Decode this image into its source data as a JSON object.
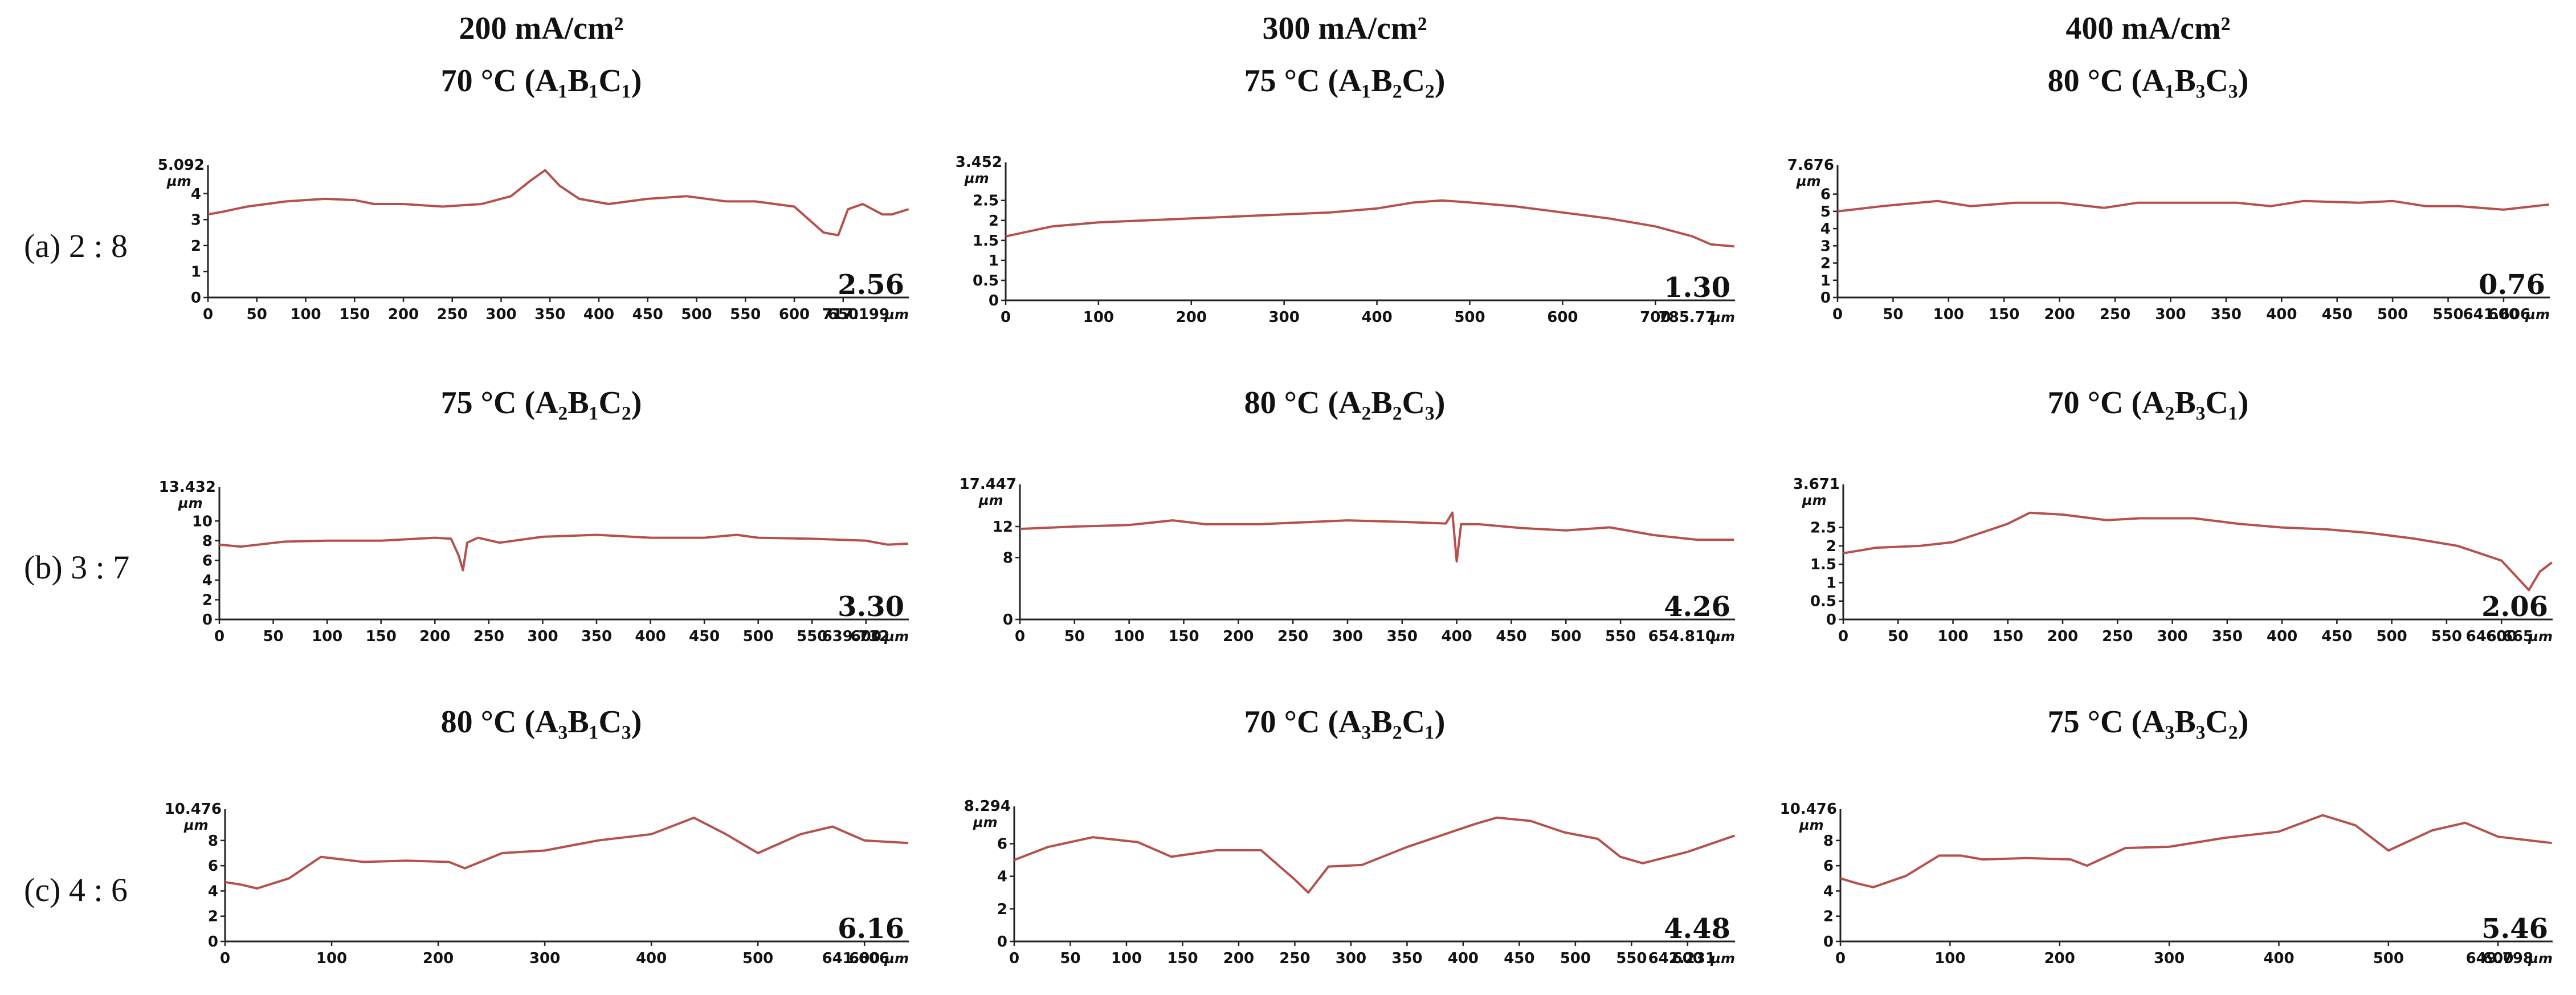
{
  "column_headers": [
    {
      "current": "200 mA/cm²",
      "condition": "70 °C (A₁B₁C₁)"
    },
    {
      "current": "300 mA/cm²",
      "condition": "75 °C (A₁B₂C₂)"
    },
    {
      "current": "400 mA/cm²",
      "condition": "80 °C (A₁B₃C₃)"
    }
  ],
  "row_conditions": [
    [
      "75 °C (A₂B₁C₂)",
      "80 °C (A₂B₂C₃)",
      "70 °C (A₂B₃C₁)"
    ],
    [
      "80 °C (A₃B₁C₃)",
      "70 °C (A₃B₂C₁)",
      "75 °C (A₃B₃C₂)"
    ]
  ],
  "row_labels": [
    "(a) 2 : 8",
    "(b) 3 : 7",
    "(c) 4 : 6"
  ],
  "colors": {
    "profile": "#b5504c",
    "axis": "#222222"
  },
  "chart_data": [
    {
      "type": "line",
      "panel": "a1",
      "ymax_label": "5.092",
      "yunit": "µm",
      "ylim": [
        0,
        5.092
      ],
      "yticks": [
        0,
        1,
        2,
        3,
        4
      ],
      "xticks": [
        0,
        50,
        100,
        150,
        200,
        250,
        300,
        350,
        400,
        450,
        500,
        550,
        600,
        650
      ],
      "xmax": 717.199,
      "xmax_label": "717.199",
      "xunit": "µm",
      "value_label": "2.56",
      "x": [
        0,
        15,
        40,
        80,
        120,
        150,
        170,
        200,
        240,
        280,
        310,
        330,
        345,
        360,
        380,
        410,
        450,
        490,
        530,
        560,
        600,
        630,
        645,
        655,
        670,
        690,
        700,
        717
      ],
      "y": [
        3.2,
        3.3,
        3.5,
        3.7,
        3.8,
        3.75,
        3.6,
        3.6,
        3.5,
        3.6,
        3.9,
        4.5,
        4.9,
        4.3,
        3.8,
        3.6,
        3.8,
        3.9,
        3.7,
        3.7,
        3.5,
        2.5,
        2.4,
        3.4,
        3.6,
        3.2,
        3.2,
        3.4
      ]
    },
    {
      "type": "line",
      "panel": "a2",
      "ymax_label": "3.452",
      "yunit": "µm",
      "ylim": [
        0,
        3.452
      ],
      "yticks": [
        0,
        0.5,
        1,
        1.5,
        2,
        2.5
      ],
      "xticks": [
        0,
        100,
        200,
        300,
        400,
        500,
        600,
        700
      ],
      "xmax": 785.77,
      "xmax_label": "785.77",
      "xunit": "µm",
      "value_label": "1.30",
      "x": [
        0,
        50,
        100,
        150,
        200,
        250,
        300,
        350,
        400,
        440,
        470,
        500,
        550,
        600,
        650,
        700,
        740,
        760,
        785
      ],
      "y": [
        1.6,
        1.85,
        1.95,
        2.0,
        2.05,
        2.1,
        2.15,
        2.2,
        2.3,
        2.45,
        2.5,
        2.45,
        2.35,
        2.2,
        2.05,
        1.85,
        1.6,
        1.4,
        1.35
      ]
    },
    {
      "type": "line",
      "panel": "a3",
      "ymax_label": "7.676",
      "yunit": "µm",
      "ylim": [
        0,
        7.676
      ],
      "yticks": [
        0,
        1,
        2,
        3,
        4,
        5,
        6
      ],
      "xticks": [
        0,
        50,
        100,
        150,
        200,
        250,
        300,
        350,
        400,
        450,
        500,
        550,
        600
      ],
      "xmax": 641.606,
      "xmax_label": "641.606",
      "xunit": "µm",
      "value_label": "0.76",
      "x": [
        0,
        40,
        90,
        120,
        160,
        200,
        240,
        270,
        320,
        360,
        390,
        420,
        470,
        500,
        530,
        560,
        600,
        641
      ],
      "y": [
        5.0,
        5.3,
        5.6,
        5.3,
        5.5,
        5.5,
        5.2,
        5.5,
        5.5,
        5.5,
        5.3,
        5.6,
        5.5,
        5.6,
        5.3,
        5.3,
        5.1,
        5.4
      ]
    },
    {
      "type": "line",
      "panel": "b1",
      "ymax_label": "13.432",
      "yunit": "µm",
      "ylim": [
        0,
        13.432
      ],
      "yticks": [
        0,
        2,
        4,
        6,
        8,
        10
      ],
      "xticks": [
        0,
        50,
        100,
        150,
        200,
        250,
        300,
        350,
        400,
        450,
        500,
        550,
        600
      ],
      "xmax": 639.732,
      "xmax_label": "639.732",
      "xunit": "µm",
      "value_label": "3.30",
      "x": [
        0,
        20,
        60,
        100,
        150,
        200,
        215,
        222,
        226,
        230,
        240,
        260,
        300,
        350,
        400,
        450,
        480,
        500,
        550,
        600,
        620,
        639
      ],
      "y": [
        7.6,
        7.4,
        7.9,
        8.0,
        8.0,
        8.3,
        8.2,
        6.5,
        5.0,
        7.8,
        8.3,
        7.8,
        8.4,
        8.6,
        8.3,
        8.3,
        8.6,
        8.3,
        8.2,
        8.0,
        7.6,
        7.7
      ]
    },
    {
      "type": "line",
      "panel": "b2",
      "ymax_label": "17.447",
      "yunit": "µm",
      "ylim": [
        0,
        17.447
      ],
      "yticks": [
        0,
        8,
        12
      ],
      "xticks": [
        0,
        50,
        100,
        150,
        200,
        250,
        300,
        350,
        400,
        450,
        500,
        550
      ],
      "xmax": 654.81,
      "xmax_label": "654.810",
      "xunit": "µm",
      "value_label": "4.26",
      "x": [
        0,
        50,
        100,
        140,
        170,
        220,
        300,
        350,
        390,
        396,
        400,
        404,
        420,
        460,
        500,
        540,
        580,
        620,
        654
      ],
      "y": [
        11.7,
        12.0,
        12.2,
        12.8,
        12.3,
        12.3,
        12.8,
        12.6,
        12.4,
        13.8,
        7.5,
        12.3,
        12.3,
        11.8,
        11.5,
        11.9,
        10.9,
        10.3,
        10.3
      ]
    },
    {
      "type": "line",
      "panel": "b3",
      "ymax_label": "3.671",
      "yunit": "µm",
      "ylim": [
        0,
        3.671
      ],
      "yticks": [
        0,
        0.5,
        1,
        1.5,
        2,
        2.5
      ],
      "xticks": [
        0,
        50,
        100,
        150,
        200,
        250,
        300,
        350,
        400,
        450,
        500,
        550,
        600
      ],
      "xmax": 646.665,
      "xmax_label": "646.665",
      "xunit": "µm",
      "value_label": "2.06",
      "x": [
        0,
        30,
        70,
        100,
        130,
        150,
        170,
        200,
        240,
        270,
        320,
        360,
        400,
        440,
        480,
        520,
        560,
        600,
        625,
        635,
        646
      ],
      "y": [
        1.8,
        1.95,
        2.0,
        2.1,
        2.4,
        2.6,
        2.9,
        2.85,
        2.7,
        2.75,
        2.75,
        2.6,
        2.5,
        2.45,
        2.35,
        2.2,
        2.0,
        1.6,
        0.8,
        1.3,
        1.55
      ]
    },
    {
      "type": "line",
      "panel": "c1",
      "ymax_label": "10.476",
      "yunit": "µm",
      "ylim": [
        0,
        10.476
      ],
      "yticks": [
        0,
        2,
        4,
        6,
        8
      ],
      "xticks": [
        0,
        100,
        200,
        300,
        400,
        500,
        600
      ],
      "xmax": 641.606,
      "xmax_label": "641.606",
      "xunit": "µm",
      "value_label": "6.16",
      "x": [
        0,
        15,
        30,
        60,
        90,
        110,
        130,
        170,
        210,
        225,
        260,
        300,
        350,
        400,
        440,
        470,
        500,
        540,
        570,
        600,
        641
      ],
      "y": [
        4.7,
        4.5,
        4.2,
        5.0,
        6.7,
        6.5,
        6.3,
        6.4,
        6.3,
        5.8,
        7.0,
        7.2,
        8.0,
        8.5,
        9.8,
        8.5,
        7.0,
        8.5,
        9.1,
        8.0,
        7.8
      ]
    },
    {
      "type": "line",
      "panel": "c2",
      "ymax_label": "8.294",
      "yunit": "µm",
      "ylim": [
        0,
        8.294
      ],
      "yticks": [
        0,
        2,
        4,
        6
      ],
      "xticks": [
        0,
        50,
        100,
        150,
        200,
        250,
        300,
        350,
        400,
        450,
        500,
        550,
        600
      ],
      "xmax": 642.231,
      "xmax_label": "642.231",
      "xunit": "µm",
      "value_label": "4.48",
      "x": [
        0,
        30,
        70,
        110,
        140,
        180,
        220,
        250,
        262,
        280,
        310,
        350,
        380,
        410,
        430,
        460,
        490,
        520,
        540,
        560,
        600,
        642
      ],
      "y": [
        5.0,
        5.8,
        6.4,
        6.1,
        5.2,
        5.6,
        5.6,
        3.8,
        3.0,
        4.6,
        4.7,
        5.8,
        6.5,
        7.2,
        7.6,
        7.4,
        6.7,
        6.3,
        5.2,
        4.8,
        5.5,
        6.5
      ]
    },
    {
      "type": "line",
      "panel": "c3",
      "ymax_label": "10.476",
      "yunit": "µm",
      "ylim": [
        0,
        10.476
      ],
      "yticks": [
        0,
        2,
        4,
        6,
        8
      ],
      "xticks": [
        0,
        100,
        200,
        300,
        400,
        500,
        600
      ],
      "xmax": 649.798,
      "xmax_label": "649.798",
      "xunit": "µm",
      "value_label": "5.46",
      "x": [
        0,
        15,
        30,
        60,
        90,
        110,
        130,
        170,
        210,
        225,
        260,
        300,
        350,
        400,
        440,
        470,
        500,
        540,
        570,
        600,
        649
      ],
      "y": [
        5.0,
        4.6,
        4.3,
        5.2,
        6.8,
        6.8,
        6.5,
        6.6,
        6.5,
        6.0,
        7.4,
        7.5,
        8.2,
        8.7,
        10.0,
        9.2,
        7.2,
        8.8,
        9.4,
        8.3,
        7.8
      ]
    }
  ]
}
